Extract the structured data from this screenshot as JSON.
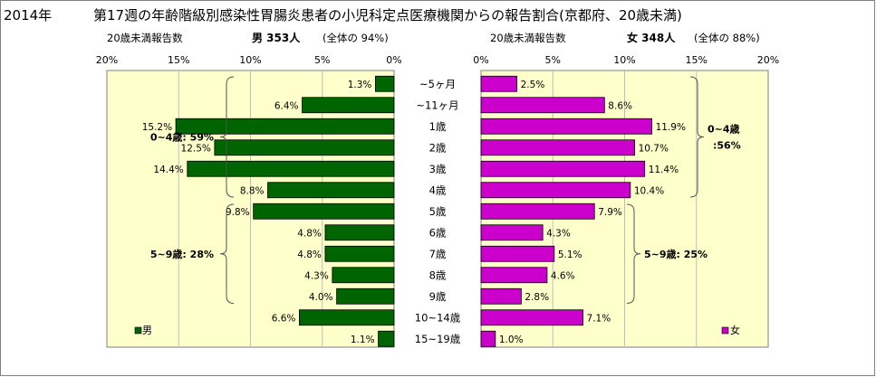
{
  "chart_data": {
    "type": "bar",
    "title_year": "2014年",
    "title": "第17週の年齢階級別感染性胃腸炎患者の小児科定点医療機関からの報告割合(京都府、20歳未満)",
    "categories": [
      "~5ヶ月",
      "~11ヶ月",
      "1歳",
      "2歳",
      "3歳",
      "4歳",
      "5歳",
      "6歳",
      "7歳",
      "8歳",
      "9歳",
      "10~14歳",
      "15~19歳"
    ],
    "xlim": [
      0,
      20
    ],
    "tick_labels": [
      "0%",
      "5%",
      "10%",
      "15%",
      "20%"
    ],
    "tick_labels_left": [
      "20%",
      "15%",
      "10%",
      "5%",
      "0%"
    ],
    "male": {
      "axis_label": "20歳未満報告数",
      "header": "男  353人",
      "share": "(全体の  94%)",
      "legend": "男",
      "color": "#006400",
      "values": [
        1.3,
        6.4,
        15.2,
        12.5,
        14.4,
        8.8,
        9.8,
        4.8,
        4.8,
        4.3,
        4.0,
        6.6,
        1.1
      ],
      "labels": [
        "1.3%",
        "6.4%",
        "15.2%",
        "12.5%",
        "14.4%",
        "8.8%",
        "9.8%",
        "4.8%",
        "4.8%",
        "4.3%",
        "4.0%",
        "6.6%",
        "1.1%"
      ],
      "groups": [
        {
          "label": "0~4歳: 59%",
          "from": 0,
          "to": 5
        },
        {
          "label": "5~9歳: 28%",
          "from": 6,
          "to": 10
        }
      ]
    },
    "female": {
      "axis_label": "20歳未満報告数",
      "header": "女  348人",
      "share": "(全体の  88%)",
      "legend": "女",
      "color": "#cc00cc",
      "values": [
        2.5,
        8.6,
        11.9,
        10.7,
        11.4,
        10.4,
        7.9,
        4.3,
        5.1,
        4.6,
        2.8,
        7.1,
        1.0
      ],
      "labels": [
        "2.5%",
        "8.6%",
        "11.9%",
        "10.7%",
        "11.4%",
        "10.4%",
        "7.9%",
        "4.3%",
        "5.1%",
        "4.6%",
        "2.8%",
        "7.1%",
        "1.0%"
      ],
      "groups": [
        {
          "label_line1": "0~4歳",
          "label_line2": ":56%",
          "from": 0,
          "to": 5
        },
        {
          "label": "5~9歳: 25%",
          "from": 6,
          "to": 10
        }
      ]
    },
    "plot_bg_color": "#ffffcc",
    "grid": true
  }
}
